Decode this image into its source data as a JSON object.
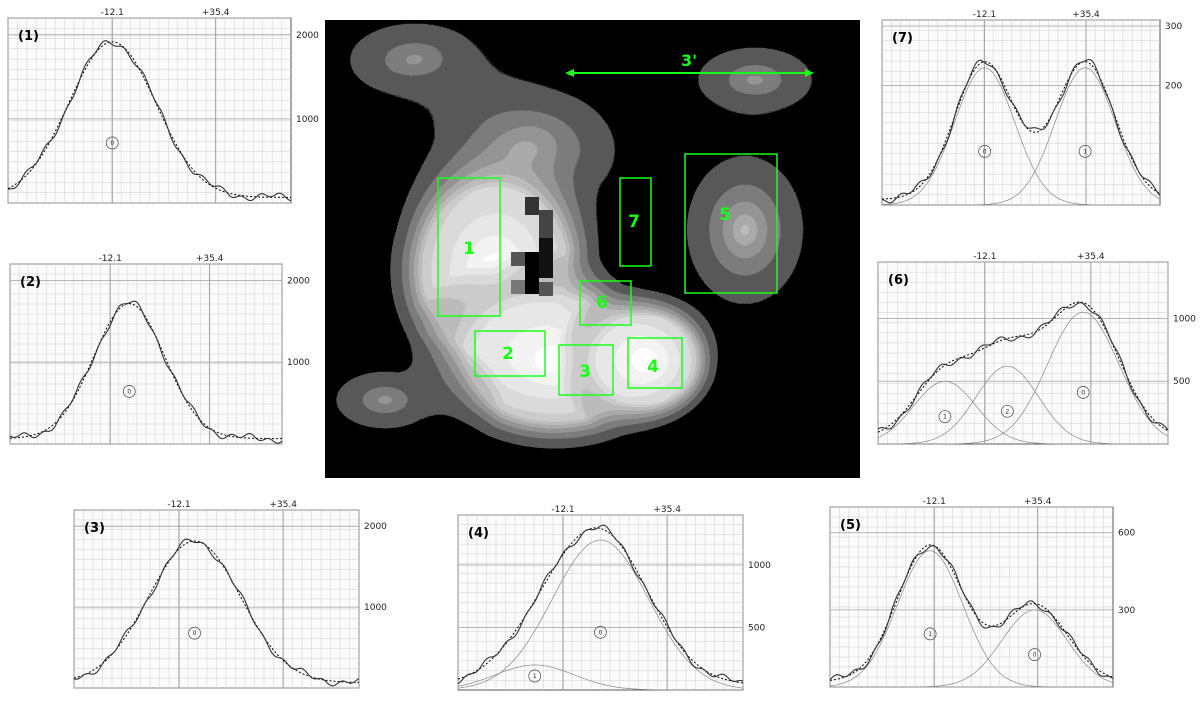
{
  "figure": {
    "colors": {
      "region_green": "#19ff19",
      "curve": "#333333",
      "grid_minor": "#cfcfcf",
      "grid_major": "#a0a0a0"
    },
    "x_markers": [
      "-12.1",
      "+35.4"
    ],
    "central_image": {
      "scale_bar_label": "3'",
      "regions": [
        {
          "label": "1"
        },
        {
          "label": "2"
        },
        {
          "label": "3"
        },
        {
          "label": "4"
        },
        {
          "label": "5"
        },
        {
          "label": "6"
        },
        {
          "label": "7"
        }
      ]
    }
  },
  "chart_data": [
    {
      "type": "line",
      "panel_label": "(1)",
      "x_markers": [
        "-12.1",
        "+35.4"
      ],
      "y_ticks": [
        "2000",
        "1000"
      ],
      "components": [
        {
          "label": "0",
          "center": -12.1,
          "amplitude": 1850,
          "sigma": 20
        }
      ],
      "ylim": [
        0,
        2200
      ],
      "xlim": [
        -60,
        70
      ]
    },
    {
      "type": "line",
      "panel_label": "(2)",
      "x_markers": [
        "-12.1",
        "+35.4"
      ],
      "y_ticks": [
        "2000",
        "1000"
      ],
      "components": [
        {
          "label": "0",
          "center": -3,
          "amplitude": 1650,
          "sigma": 17
        }
      ],
      "ylim": [
        0,
        2200
      ],
      "xlim": [
        -60,
        70
      ]
    },
    {
      "type": "line",
      "panel_label": "(3)",
      "x_markers": [
        "-12.1",
        "+35.4"
      ],
      "y_ticks": [
        "2000",
        "1000"
      ],
      "components": [
        {
          "label": "0",
          "center": -5,
          "amplitude": 1750,
          "sigma": 21
        }
      ],
      "ylim": [
        0,
        2200
      ],
      "xlim": [
        -60,
        70
      ]
    },
    {
      "type": "line",
      "panel_label": "(4)",
      "x_markers": [
        "-12.1",
        "+35.4"
      ],
      "y_ticks": [
        "1000",
        "500"
      ],
      "components": [
        {
          "label": "0",
          "center": 5,
          "amplitude": 1200,
          "sigma": 22
        },
        {
          "label": "1",
          "center": -25,
          "amplitude": 200,
          "sigma": 18
        }
      ],
      "ylim": [
        0,
        1400
      ],
      "xlim": [
        -60,
        70
      ]
    },
    {
      "type": "line",
      "panel_label": "(5)",
      "x_markers": [
        "-12.1",
        "+35.4"
      ],
      "y_ticks": [
        "600",
        "300"
      ],
      "components": [
        {
          "label": "1",
          "center": -14,
          "amplitude": 530,
          "sigma": 15
        },
        {
          "label": "0",
          "center": 34,
          "amplitude": 300,
          "sigma": 15
        }
      ],
      "ylim": [
        0,
        700
      ],
      "xlim": [
        -60,
        70
      ]
    },
    {
      "type": "line",
      "panel_label": "(6)",
      "x_markers": [
        "-12.1",
        "+35.4"
      ],
      "y_ticks": [
        "1000",
        "500"
      ],
      "components": [
        {
          "label": "1",
          "center": -30,
          "amplitude": 500,
          "sigma": 14
        },
        {
          "label": "2",
          "center": -2,
          "amplitude": 620,
          "sigma": 14
        },
        {
          "label": "0",
          "center": 32,
          "amplitude": 1050,
          "sigma": 16
        }
      ],
      "ylim": [
        0,
        1450
      ],
      "xlim": [
        -60,
        70
      ]
    },
    {
      "type": "line",
      "panel_label": "(7)",
      "x_markers": [
        "-12.1",
        "+35.4"
      ],
      "y_ticks": [
        "300",
        "200"
      ],
      "components": [
        {
          "label": "0",
          "center": -12,
          "amplitude": 230,
          "sigma": 14
        },
        {
          "label": "1",
          "center": 35,
          "amplitude": 230,
          "sigma": 14
        }
      ],
      "ylim": [
        0,
        310
      ],
      "xlim": [
        -60,
        70
      ]
    }
  ]
}
